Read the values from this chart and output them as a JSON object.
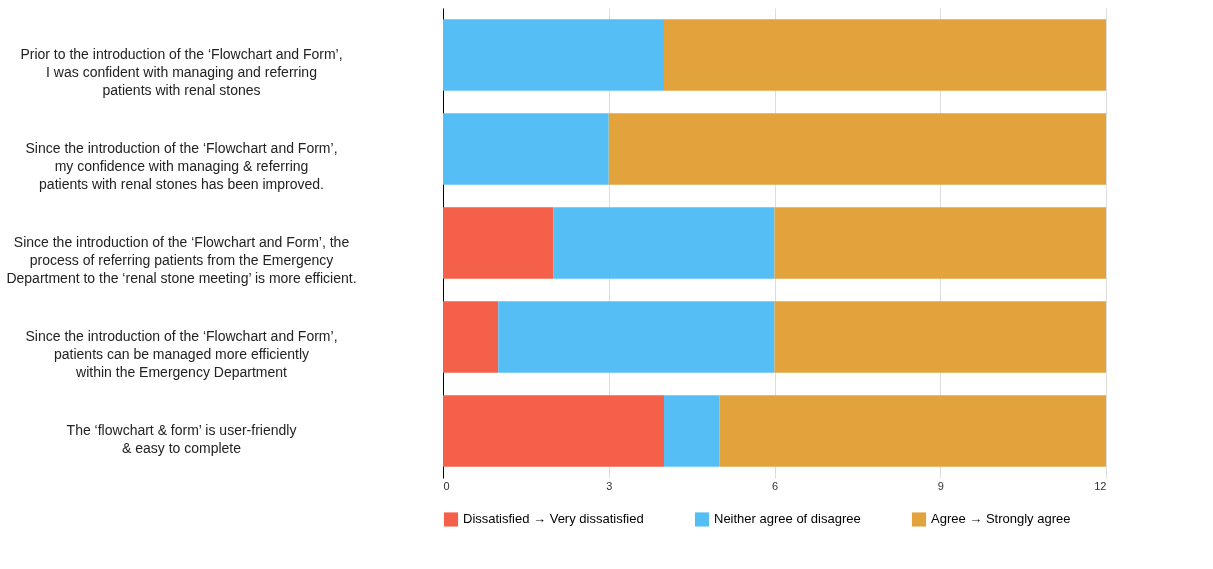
{
  "chart_data": {
    "type": "bar",
    "orientation": "horizontal",
    "stacked": true,
    "categories": [
      "Prior to the introduction of the ‘Flowchart and Form’,\nI was confident with managing and referring\npatients with renal stones",
      "Since the introduction of the ‘Flowchart and Form’,\nmy confidence with managing & referring\npatients with renal stones has been improved.",
      "Since the introduction of the ‘Flowchart and Form’, the\nprocess of referring patients from the Emergency\nDepartment to the ‘renal stone meeting’ is more efficient.",
      "Since the introduction of the ‘Flowchart and Form’,\npatients can be managed more efficiently\nwithin the Emergency Department",
      "The ‘flowchart & form’ is user-friendly\n& easy to complete"
    ],
    "series": [
      {
        "name": "Dissatisfied → Very dissatisfied",
        "color": "#f4604a",
        "values": [
          0,
          0,
          2,
          1,
          4
        ]
      },
      {
        "name": "Neither agree of disagree",
        "color": "#55bff5",
        "values": [
          4,
          3,
          4,
          5,
          1
        ]
      },
      {
        "name": "Agree → Strongly agree",
        "color": "#e3a33c",
        "values": [
          8,
          9,
          6,
          6,
          7
        ]
      }
    ],
    "xlim": [
      0,
      12
    ],
    "xticks": [
      0,
      3,
      6,
      9,
      12
    ],
    "grid": "x",
    "legend": "bottom"
  }
}
